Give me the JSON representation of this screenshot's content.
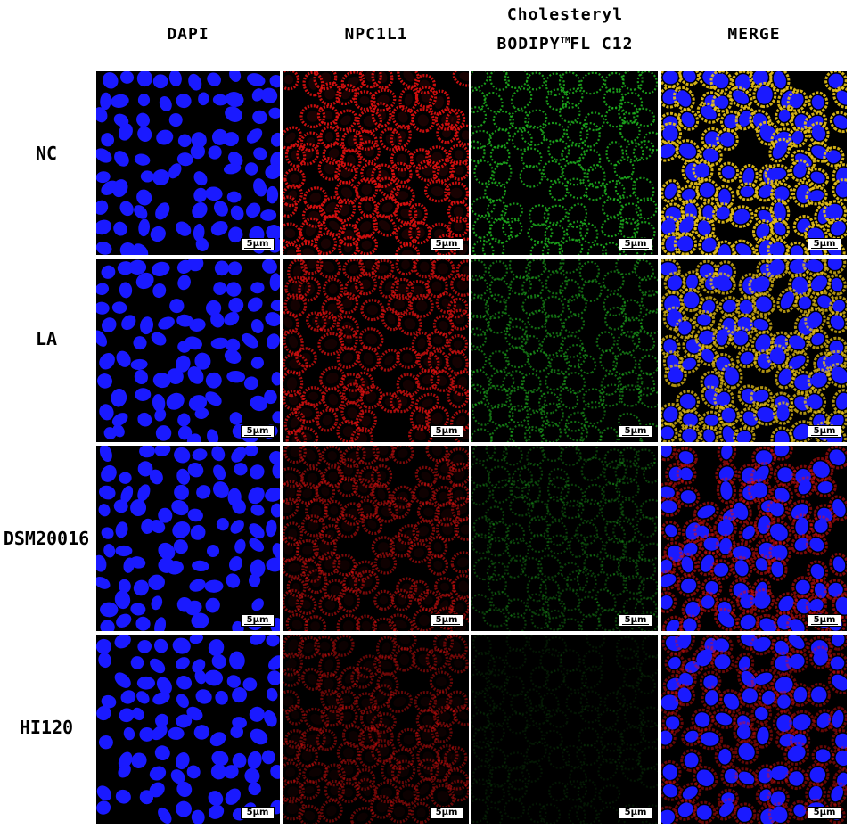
{
  "columns": [
    {
      "key": "dapi",
      "line1": "DAPI",
      "line2": ""
    },
    {
      "key": "npc1l1",
      "line1": "NPC1L1",
      "line2": ""
    },
    {
      "key": "cholesteryl",
      "line1": "Cholesteryl",
      "line2_pre": "BODIPY",
      "line2_sup": "TM",
      "line2_post": "FL C12"
    },
    {
      "key": "merge",
      "line1": "MERGE",
      "line2": ""
    }
  ],
  "rows": [
    {
      "label": "NC",
      "green_intensity": 0.85,
      "red_intensity": 0.9
    },
    {
      "label": "LA",
      "green_intensity": 0.6,
      "red_intensity": 0.75
    },
    {
      "label": "DSM20016",
      "green_intensity": 0.35,
      "red_intensity": 0.55
    },
    {
      "label": "HI120",
      "green_intensity": 0.12,
      "red_intensity": 0.45
    }
  ],
  "scale_bar": "5μm",
  "channel_colors": {
    "dapi": "#1a1aff",
    "npc1l1": "#e01010",
    "cholesteryl": "#1fb41f"
  }
}
